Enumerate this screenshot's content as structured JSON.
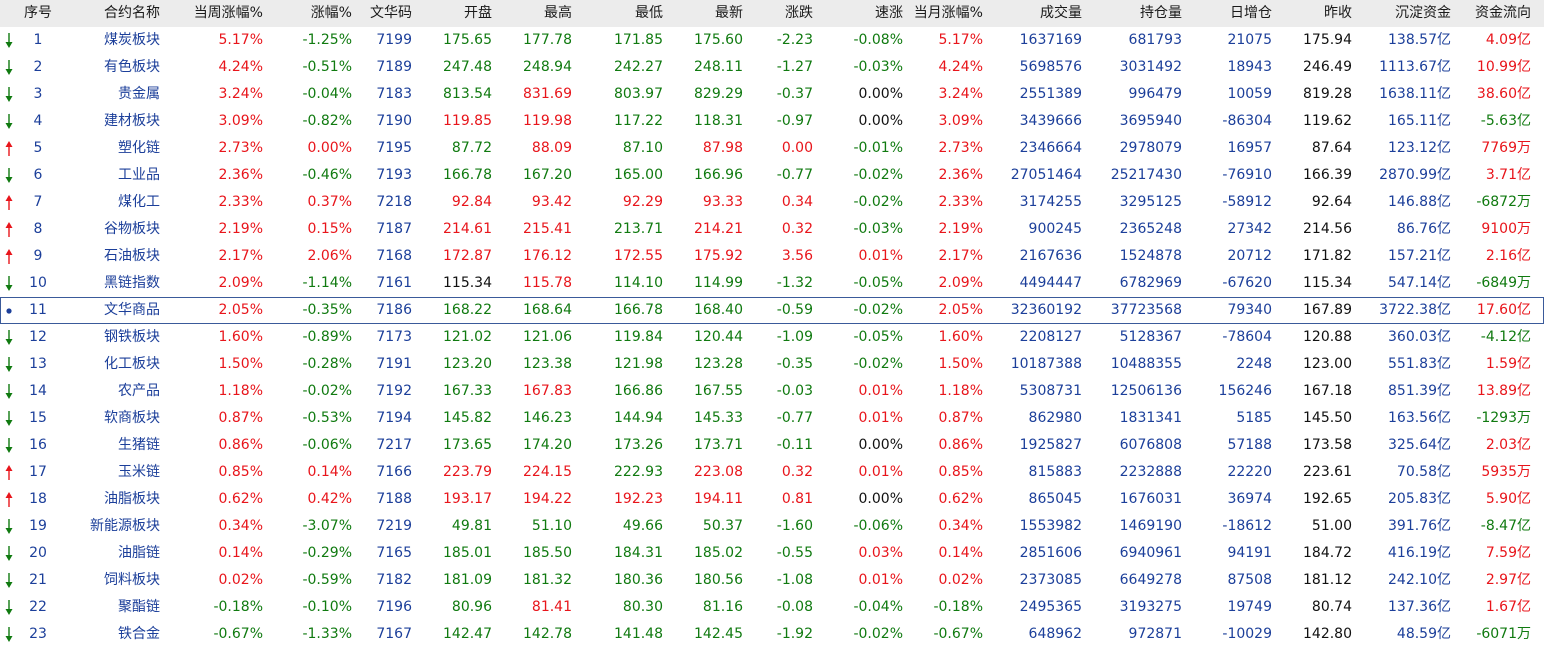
{
  "headers": [
    "序号",
    "合约名称",
    "当周涨幅%",
    "涨幅%",
    "文华码",
    "开盘",
    "最高",
    "最低",
    "最新",
    "涨跌",
    "速涨",
    "当月涨幅%",
    "成交量",
    "持仓量",
    "日增仓",
    "昨收",
    "沉淀资金",
    "资金流向"
  ],
  "colors": {
    "up": "#e8151b",
    "down": "#107a10",
    "neutral": "#111111",
    "code": "#1c3f9a",
    "header_bg": "#ececec",
    "selected_border": "#3a5a9a"
  },
  "selected_row": "11",
  "rows": [
    {
      "arrow": "down",
      "c": [
        "1",
        "煤炭板块",
        "5.17%",
        "-1.25%",
        "7199",
        "175.65",
        "177.78",
        "171.85",
        "175.60",
        "-2.23",
        "-0.08%",
        "5.17%",
        "1637169",
        "681793",
        "21075",
        "175.94",
        "138.57亿",
        "4.09亿"
      ],
      "k": [
        "blu",
        "blu",
        "red",
        "grn",
        "blu",
        "grn",
        "grn",
        "grn",
        "grn",
        "grn",
        "grn",
        "red",
        "blu",
        "blu",
        "blu",
        "blk",
        "blu",
        "red"
      ]
    },
    {
      "arrow": "down",
      "c": [
        "2",
        "有色板块",
        "4.24%",
        "-0.51%",
        "7189",
        "247.48",
        "248.94",
        "242.27",
        "248.11",
        "-1.27",
        "-0.03%",
        "4.24%",
        "5698576",
        "3031492",
        "18943",
        "246.49",
        "1113.67亿",
        "10.99亿"
      ],
      "k": [
        "blu",
        "blu",
        "red",
        "grn",
        "blu",
        "grn",
        "grn",
        "grn",
        "grn",
        "grn",
        "grn",
        "red",
        "blu",
        "blu",
        "blu",
        "blk",
        "blu",
        "red"
      ]
    },
    {
      "arrow": "down",
      "c": [
        "3",
        "贵金属",
        "3.24%",
        "-0.04%",
        "7183",
        "813.54",
        "831.69",
        "803.97",
        "829.29",
        "-0.37",
        "0.00%",
        "3.24%",
        "2551389",
        "996479",
        "10059",
        "819.28",
        "1638.11亿",
        "38.60亿"
      ],
      "k": [
        "blu",
        "blu",
        "red",
        "grn",
        "blu",
        "grn",
        "red",
        "grn",
        "grn",
        "grn",
        "blk",
        "red",
        "blu",
        "blu",
        "blu",
        "blk",
        "blu",
        "red"
      ]
    },
    {
      "arrow": "down",
      "c": [
        "4",
        "建材板块",
        "3.09%",
        "-0.82%",
        "7190",
        "119.85",
        "119.98",
        "117.22",
        "118.31",
        "-0.97",
        "0.00%",
        "3.09%",
        "3439666",
        "3695940",
        "-86304",
        "119.62",
        "165.11亿",
        "-5.63亿"
      ],
      "k": [
        "blu",
        "blu",
        "red",
        "grn",
        "blu",
        "red",
        "red",
        "grn",
        "grn",
        "grn",
        "blk",
        "red",
        "blu",
        "blu",
        "blu",
        "blk",
        "blu",
        "grn"
      ]
    },
    {
      "arrow": "up",
      "c": [
        "5",
        "塑化链",
        "2.73%",
        "0.00%",
        "7195",
        "87.72",
        "88.09",
        "87.10",
        "87.98",
        "0.00",
        "-0.01%",
        "2.73%",
        "2346664",
        "2978079",
        "16957",
        "87.64",
        "123.12亿",
        "7769万"
      ],
      "k": [
        "blu",
        "blu",
        "red",
        "red",
        "blu",
        "grn",
        "red",
        "grn",
        "red",
        "red",
        "grn",
        "red",
        "blu",
        "blu",
        "blu",
        "blk",
        "blu",
        "red"
      ]
    },
    {
      "arrow": "down",
      "c": [
        "6",
        "工业品",
        "2.36%",
        "-0.46%",
        "7193",
        "166.78",
        "167.20",
        "165.00",
        "166.96",
        "-0.77",
        "-0.02%",
        "2.36%",
        "27051464",
        "25217430",
        "-76910",
        "166.39",
        "2870.99亿",
        "3.71亿"
      ],
      "k": [
        "blu",
        "blu",
        "red",
        "grn",
        "blu",
        "grn",
        "grn",
        "grn",
        "grn",
        "grn",
        "grn",
        "red",
        "blu",
        "blu",
        "blu",
        "blk",
        "blu",
        "red"
      ]
    },
    {
      "arrow": "up",
      "c": [
        "7",
        "煤化工",
        "2.33%",
        "0.37%",
        "7218",
        "92.84",
        "93.42",
        "92.29",
        "93.33",
        "0.34",
        "-0.02%",
        "2.33%",
        "3174255",
        "3295125",
        "-58912",
        "92.64",
        "146.88亿",
        "-6872万"
      ],
      "k": [
        "blu",
        "blu",
        "red",
        "red",
        "blu",
        "red",
        "red",
        "red",
        "red",
        "red",
        "grn",
        "red",
        "blu",
        "blu",
        "blu",
        "blk",
        "blu",
        "grn"
      ]
    },
    {
      "arrow": "up",
      "c": [
        "8",
        "谷物板块",
        "2.19%",
        "0.15%",
        "7187",
        "214.61",
        "215.41",
        "213.71",
        "214.21",
        "0.32",
        "-0.03%",
        "2.19%",
        "900245",
        "2365248",
        "27342",
        "214.56",
        "86.76亿",
        "9100万"
      ],
      "k": [
        "blu",
        "blu",
        "red",
        "red",
        "blu",
        "red",
        "red",
        "grn",
        "red",
        "red",
        "grn",
        "red",
        "blu",
        "blu",
        "blu",
        "blk",
        "blu",
        "red"
      ]
    },
    {
      "arrow": "up",
      "c": [
        "9",
        "石油板块",
        "2.17%",
        "2.06%",
        "7168",
        "172.87",
        "176.12",
        "172.55",
        "175.92",
        "3.56",
        "0.01%",
        "2.17%",
        "2167636",
        "1524878",
        "20712",
        "171.82",
        "157.21亿",
        "2.16亿"
      ],
      "k": [
        "blu",
        "blu",
        "red",
        "red",
        "blu",
        "red",
        "red",
        "red",
        "red",
        "red",
        "red",
        "red",
        "blu",
        "blu",
        "blu",
        "blk",
        "blu",
        "red"
      ]
    },
    {
      "arrow": "down",
      "c": [
        "10",
        "黑链指数",
        "2.09%",
        "-1.14%",
        "7161",
        "115.34",
        "115.78",
        "114.10",
        "114.99",
        "-1.32",
        "-0.05%",
        "2.09%",
        "4494447",
        "6782969",
        "-67620",
        "115.34",
        "547.14亿",
        "-6849万"
      ],
      "k": [
        "blu",
        "blu",
        "red",
        "grn",
        "blu",
        "blk",
        "red",
        "grn",
        "grn",
        "grn",
        "grn",
        "red",
        "blu",
        "blu",
        "blu",
        "blk",
        "blu",
        "grn"
      ]
    },
    {
      "arrow": "dot",
      "c": [
        "11",
        "文华商品",
        "2.05%",
        "-0.35%",
        "7186",
        "168.22",
        "168.64",
        "166.78",
        "168.40",
        "-0.59",
        "-0.02%",
        "2.05%",
        "32360192",
        "37723568",
        "79340",
        "167.89",
        "3722.38亿",
        "17.60亿"
      ],
      "k": [
        "blu",
        "blu",
        "red",
        "grn",
        "blu",
        "grn",
        "grn",
        "grn",
        "grn",
        "grn",
        "grn",
        "red",
        "blu",
        "blu",
        "blu",
        "blk",
        "blu",
        "red"
      ]
    },
    {
      "arrow": "down",
      "c": [
        "12",
        "钢铁板块",
        "1.60%",
        "-0.89%",
        "7173",
        "121.02",
        "121.06",
        "119.84",
        "120.44",
        "-1.09",
        "-0.05%",
        "1.60%",
        "2208127",
        "5128367",
        "-78604",
        "120.88",
        "360.03亿",
        "-4.12亿"
      ],
      "k": [
        "blu",
        "blu",
        "red",
        "grn",
        "blu",
        "grn",
        "grn",
        "grn",
        "grn",
        "grn",
        "grn",
        "red",
        "blu",
        "blu",
        "blu",
        "blk",
        "blu",
        "grn"
      ]
    },
    {
      "arrow": "down",
      "c": [
        "13",
        "化工板块",
        "1.50%",
        "-0.28%",
        "7191",
        "123.20",
        "123.38",
        "121.98",
        "123.28",
        "-0.35",
        "-0.02%",
        "1.50%",
        "10187388",
        "10488355",
        "2248",
        "123.00",
        "551.83亿",
        "1.59亿"
      ],
      "k": [
        "blu",
        "blu",
        "red",
        "grn",
        "blu",
        "grn",
        "grn",
        "grn",
        "grn",
        "grn",
        "grn",
        "red",
        "blu",
        "blu",
        "blu",
        "blk",
        "blu",
        "red"
      ]
    },
    {
      "arrow": "down",
      "c": [
        "14",
        "农产品",
        "1.18%",
        "-0.02%",
        "7192",
        "167.33",
        "167.83",
        "166.86",
        "167.55",
        "-0.03",
        "0.01%",
        "1.18%",
        "5308731",
        "12506136",
        "156246",
        "167.18",
        "851.39亿",
        "13.89亿"
      ],
      "k": [
        "blu",
        "blu",
        "red",
        "grn",
        "blu",
        "grn",
        "red",
        "grn",
        "grn",
        "grn",
        "red",
        "red",
        "blu",
        "blu",
        "blu",
        "blk",
        "blu",
        "red"
      ]
    },
    {
      "arrow": "down",
      "c": [
        "15",
        "软商板块",
        "0.87%",
        "-0.53%",
        "7194",
        "145.82",
        "146.23",
        "144.94",
        "145.33",
        "-0.77",
        "0.01%",
        "0.87%",
        "862980",
        "1831341",
        "5185",
        "145.50",
        "163.56亿",
        "-1293万"
      ],
      "k": [
        "blu",
        "blu",
        "red",
        "grn",
        "blu",
        "grn",
        "grn",
        "grn",
        "grn",
        "grn",
        "red",
        "red",
        "blu",
        "blu",
        "blu",
        "blk",
        "blu",
        "grn"
      ]
    },
    {
      "arrow": "down",
      "c": [
        "16",
        "生猪链",
        "0.86%",
        "-0.06%",
        "7217",
        "173.65",
        "174.20",
        "173.26",
        "173.71",
        "-0.11",
        "0.00%",
        "0.86%",
        "1925827",
        "6076808",
        "57188",
        "173.58",
        "325.64亿",
        "2.03亿"
      ],
      "k": [
        "blu",
        "blu",
        "red",
        "grn",
        "blu",
        "grn",
        "grn",
        "grn",
        "grn",
        "grn",
        "blk",
        "red",
        "blu",
        "blu",
        "blu",
        "blk",
        "blu",
        "red"
      ]
    },
    {
      "arrow": "up",
      "c": [
        "17",
        "玉米链",
        "0.85%",
        "0.14%",
        "7166",
        "223.79",
        "224.15",
        "222.93",
        "223.08",
        "0.32",
        "0.01%",
        "0.85%",
        "815883",
        "2232888",
        "22220",
        "223.61",
        "70.58亿",
        "5935万"
      ],
      "k": [
        "blu",
        "blu",
        "red",
        "red",
        "blu",
        "red",
        "red",
        "grn",
        "red",
        "red",
        "red",
        "red",
        "blu",
        "blu",
        "blu",
        "blk",
        "blu",
        "red"
      ]
    },
    {
      "arrow": "up",
      "c": [
        "18",
        "油脂板块",
        "0.62%",
        "0.42%",
        "7188",
        "193.17",
        "194.22",
        "192.23",
        "194.11",
        "0.81",
        "0.00%",
        "0.62%",
        "865045",
        "1676031",
        "36974",
        "192.65",
        "205.83亿",
        "5.90亿"
      ],
      "k": [
        "blu",
        "blu",
        "red",
        "red",
        "blu",
        "red",
        "red",
        "red",
        "red",
        "red",
        "blk",
        "red",
        "blu",
        "blu",
        "blu",
        "blk",
        "blu",
        "red"
      ]
    },
    {
      "arrow": "down",
      "c": [
        "19",
        "新能源板块",
        "0.34%",
        "-3.07%",
        "7219",
        "49.81",
        "51.10",
        "49.66",
        "50.37",
        "-1.60",
        "-0.06%",
        "0.34%",
        "1553982",
        "1469190",
        "-18612",
        "51.00",
        "391.76亿",
        "-8.47亿"
      ],
      "k": [
        "blu",
        "blu",
        "red",
        "grn",
        "blu",
        "grn",
        "grn",
        "grn",
        "grn",
        "grn",
        "grn",
        "red",
        "blu",
        "blu",
        "blu",
        "blk",
        "blu",
        "grn"
      ]
    },
    {
      "arrow": "down",
      "c": [
        "20",
        "油脂链",
        "0.14%",
        "-0.29%",
        "7165",
        "185.01",
        "185.50",
        "184.31",
        "185.02",
        "-0.55",
        "0.03%",
        "0.14%",
        "2851606",
        "6940961",
        "94191",
        "184.72",
        "416.19亿",
        "7.59亿"
      ],
      "k": [
        "blu",
        "blu",
        "red",
        "grn",
        "blu",
        "grn",
        "grn",
        "grn",
        "grn",
        "grn",
        "red",
        "red",
        "blu",
        "blu",
        "blu",
        "blk",
        "blu",
        "red"
      ]
    },
    {
      "arrow": "down",
      "c": [
        "21",
        "饲料板块",
        "0.02%",
        "-0.59%",
        "7182",
        "181.09",
        "181.32",
        "180.36",
        "180.56",
        "-1.08",
        "0.01%",
        "0.02%",
        "2373085",
        "6649278",
        "87508",
        "181.12",
        "242.10亿",
        "2.97亿"
      ],
      "k": [
        "blu",
        "blu",
        "red",
        "grn",
        "blu",
        "grn",
        "grn",
        "grn",
        "grn",
        "grn",
        "red",
        "red",
        "blu",
        "blu",
        "blu",
        "blk",
        "blu",
        "red"
      ]
    },
    {
      "arrow": "down",
      "c": [
        "22",
        "聚酯链",
        "-0.18%",
        "-0.10%",
        "7196",
        "80.96",
        "81.41",
        "80.30",
        "81.16",
        "-0.08",
        "-0.04%",
        "-0.18%",
        "2495365",
        "3193275",
        "19749",
        "80.74",
        "137.36亿",
        "1.67亿"
      ],
      "k": [
        "blu",
        "blu",
        "grn",
        "grn",
        "blu",
        "grn",
        "red",
        "grn",
        "grn",
        "grn",
        "grn",
        "grn",
        "blu",
        "blu",
        "blu",
        "blk",
        "blu",
        "red"
      ]
    },
    {
      "arrow": "down",
      "c": [
        "23",
        "铁合金",
        "-0.67%",
        "-1.33%",
        "7167",
        "142.47",
        "142.78",
        "141.48",
        "142.45",
        "-1.92",
        "-0.02%",
        "-0.67%",
        "648962",
        "972871",
        "-10029",
        "142.80",
        "48.59亿",
        "-6071万"
      ],
      "k": [
        "blu",
        "blu",
        "grn",
        "grn",
        "blu",
        "grn",
        "grn",
        "grn",
        "grn",
        "grn",
        "grn",
        "grn",
        "blu",
        "blu",
        "blu",
        "blk",
        "blu",
        "grn"
      ]
    }
  ]
}
